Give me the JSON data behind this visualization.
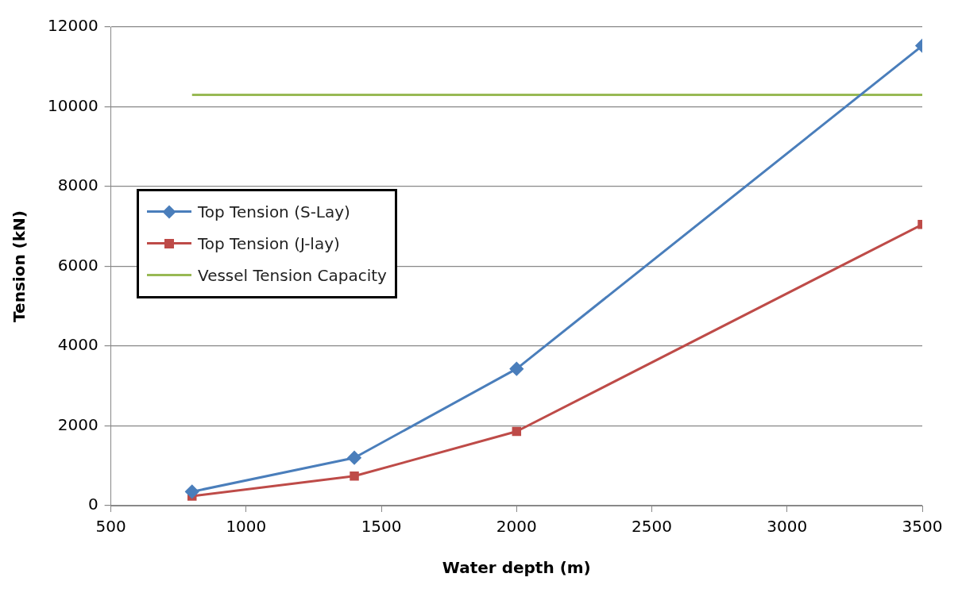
{
  "chart_data": {
    "type": "line",
    "xlabel": "Water depth (m)",
    "ylabel": "Tension (kN)",
    "xlim": [
      500,
      3500
    ],
    "xticks": [
      500,
      1000,
      1500,
      2000,
      2500,
      3000,
      3500
    ],
    "ylim": [
      0,
      12000
    ],
    "yticks": [
      0,
      2000,
      4000,
      6000,
      8000,
      10000,
      12000
    ],
    "grid": "y",
    "legend": "top left",
    "series": [
      {
        "name": "Top Tension (S-Lay)",
        "color": "#4a7ebb",
        "marker": "diamond",
        "x": [
          800,
          1400,
          2000,
          3500
        ],
        "values": [
          350,
          1200,
          3430,
          11530
        ]
      },
      {
        "name": "Top Tension (J-lay)",
        "color": "#be4b48",
        "marker": "square",
        "x": [
          800,
          1400,
          2000,
          3500
        ],
        "values": [
          240,
          740,
          1860,
          7050
        ]
      },
      {
        "name": "Vessel Tension Capacity",
        "color": "#98b954",
        "marker": "none",
        "x": [
          800,
          3500
        ],
        "values": [
          10300,
          10300
        ]
      }
    ]
  }
}
